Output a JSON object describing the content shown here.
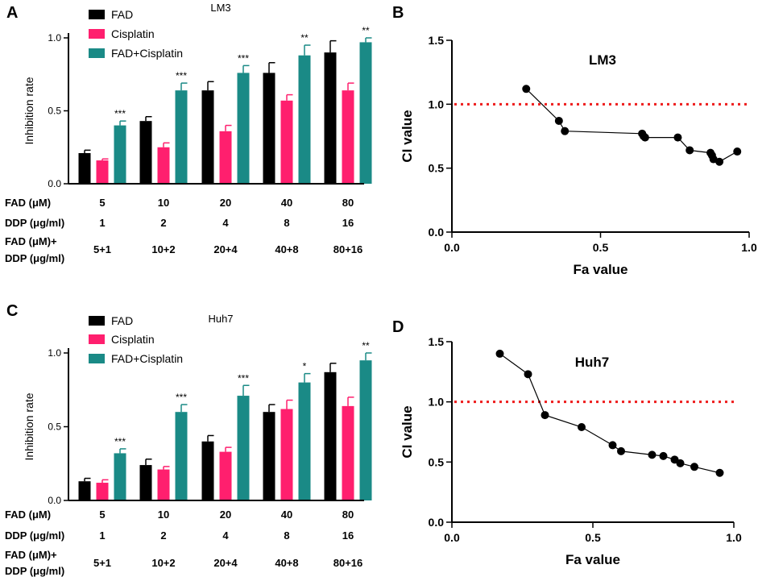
{
  "chart_data": [
    {
      "panel": "A",
      "type": "bar",
      "title": "LM3",
      "ylabel": "Inhibition rate",
      "ylim": [
        0,
        1.0
      ],
      "yticks": [
        "0.0",
        "0.5",
        "1.0"
      ],
      "categories": [
        "5",
        "10",
        "20",
        "40",
        "80"
      ],
      "series": [
        {
          "name": "FAD",
          "color": "#000000",
          "values": [
            0.21,
            0.43,
            0.64,
            0.76,
            0.9
          ],
          "errors": [
            0.02,
            0.03,
            0.06,
            0.07,
            0.08
          ]
        },
        {
          "name": "Cisplatin",
          "color": "#ff1f6e",
          "values": [
            0.16,
            0.25,
            0.36,
            0.57,
            0.64
          ],
          "errors": [
            0.01,
            0.03,
            0.04,
            0.04,
            0.05
          ]
        },
        {
          "name": "FAD+Cisplatin",
          "color": "#1a8a86",
          "values": [
            0.4,
            0.64,
            0.76,
            0.88,
            0.97
          ],
          "errors": [
            0.03,
            0.05,
            0.05,
            0.07,
            0.03
          ]
        }
      ],
      "significance": [
        "***",
        "***",
        "***",
        "**",
        "**"
      ],
      "dose_table": {
        "rows": [
          {
            "label": "FAD (μM)",
            "values": [
              "5",
              "10",
              "20",
              "40",
              "80"
            ]
          },
          {
            "label": "DDP (μg/ml)",
            "values": [
              "1",
              "2",
              "4",
              "8",
              "16"
            ]
          },
          {
            "label_line1": "FAD (μM)+",
            "label_line2": "DDP (μg/ml)",
            "values": [
              "5+1",
              "10+2",
              "20+4",
              "40+8",
              "80+16"
            ]
          }
        ]
      }
    },
    {
      "panel": "B",
      "type": "line",
      "title": "LM3",
      "xlabel": "Fa value",
      "ylabel": "CI value",
      "xlim": [
        0,
        1.0
      ],
      "ylim": [
        0,
        1.5
      ],
      "xticks": [
        "0.0",
        "0.5",
        "1.0"
      ],
      "yticks": [
        "0.0",
        "0.5",
        "1.0",
        "1.5"
      ],
      "reference_line": 1.0,
      "points": [
        [
          0.25,
          1.12
        ],
        [
          0.36,
          0.87
        ],
        [
          0.38,
          0.79
        ],
        [
          0.64,
          0.77
        ],
        [
          0.645,
          0.75
        ],
        [
          0.65,
          0.74
        ],
        [
          0.76,
          0.74
        ],
        [
          0.8,
          0.64
        ],
        [
          0.87,
          0.62
        ],
        [
          0.875,
          0.6
        ],
        [
          0.88,
          0.57
        ],
        [
          0.9,
          0.55
        ],
        [
          0.96,
          0.63
        ]
      ]
    },
    {
      "panel": "C",
      "type": "bar",
      "title": "Huh7",
      "ylabel": "Inhibition rate",
      "ylim": [
        0,
        1.0
      ],
      "yticks": [
        "0.0",
        "0.5",
        "1.0"
      ],
      "categories": [
        "5",
        "10",
        "20",
        "40",
        "80"
      ],
      "series": [
        {
          "name": "FAD",
          "color": "#000000",
          "values": [
            0.13,
            0.24,
            0.4,
            0.6,
            0.87
          ],
          "errors": [
            0.02,
            0.04,
            0.04,
            0.05,
            0.06
          ]
        },
        {
          "name": "Cisplatin",
          "color": "#ff1f6e",
          "values": [
            0.12,
            0.21,
            0.33,
            0.62,
            0.64
          ],
          "errors": [
            0.02,
            0.02,
            0.03,
            0.06,
            0.06
          ]
        },
        {
          "name": "FAD+Cisplatin",
          "color": "#1a8a86",
          "values": [
            0.32,
            0.6,
            0.71,
            0.8,
            0.95
          ],
          "errors": [
            0.03,
            0.05,
            0.07,
            0.06,
            0.05
          ]
        }
      ],
      "significance": [
        "***",
        "***",
        "***",
        "*",
        "**"
      ],
      "dose_table": {
        "rows": [
          {
            "label": "FAD (μM)",
            "values": [
              "5",
              "10",
              "20",
              "40",
              "80"
            ]
          },
          {
            "label": "DDP (μg/ml)",
            "values": [
              "1",
              "2",
              "4",
              "8",
              "16"
            ]
          },
          {
            "label_line1": "FAD (μM)+",
            "label_line2": "DDP (μg/ml)",
            "values": [
              "5+1",
              "10+2",
              "20+4",
              "40+8",
              "80+16"
            ]
          }
        ]
      }
    },
    {
      "panel": "D",
      "type": "line",
      "title": "Huh7",
      "xlabel": "Fa value",
      "ylabel": "CI value",
      "xlim": [
        0,
        1.0
      ],
      "ylim": [
        0,
        1.5
      ],
      "xticks": [
        "0.0",
        "0.5",
        "1.0"
      ],
      "yticks": [
        "0.0",
        "0.5",
        "1.0",
        "1.5"
      ],
      "reference_line": 1.0,
      "points": [
        [
          0.17,
          1.4
        ],
        [
          0.27,
          1.23
        ],
        [
          0.33,
          0.89
        ],
        [
          0.46,
          0.79
        ],
        [
          0.57,
          0.64
        ],
        [
          0.6,
          0.59
        ],
        [
          0.71,
          0.56
        ],
        [
          0.75,
          0.55
        ],
        [
          0.79,
          0.52
        ],
        [
          0.81,
          0.49
        ],
        [
          0.86,
          0.46
        ],
        [
          0.95,
          0.41
        ]
      ]
    }
  ],
  "colors": {
    "reference_line": "#ee1c1c"
  }
}
